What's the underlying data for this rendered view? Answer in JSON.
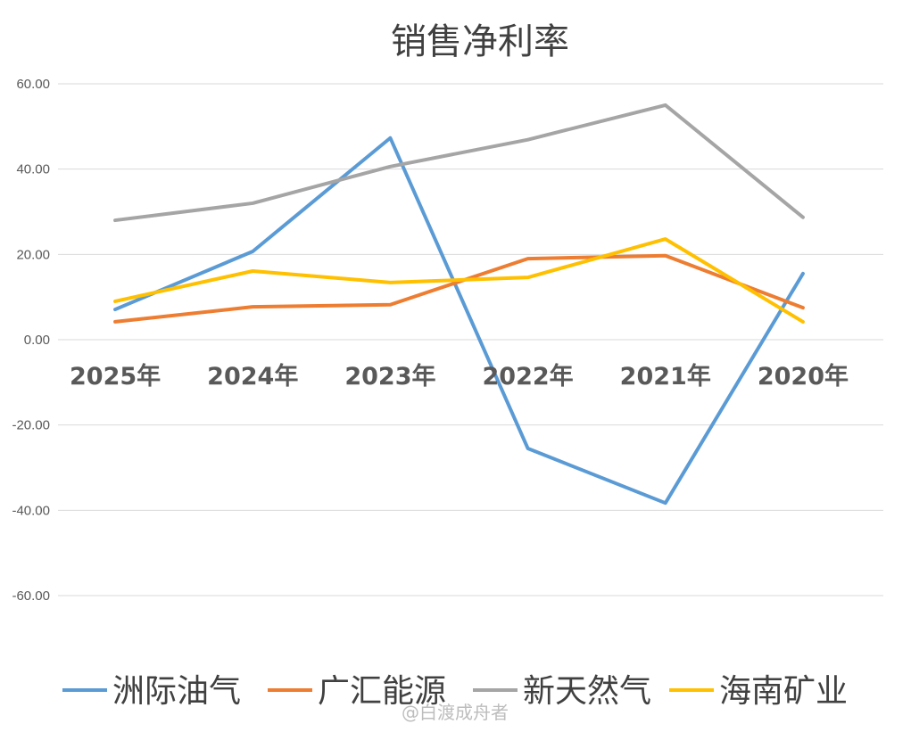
{
  "chart_data": {
    "type": "line",
    "title": "销售净利率",
    "categories": [
      "2025年",
      "2024年",
      "2023年",
      "2022年",
      "2021年",
      "2020年"
    ],
    "ylim": [
      -60,
      60
    ],
    "yticks": [
      "60.00",
      "40.00",
      "20.00",
      "0.00",
      "-20.00",
      "-40.00",
      "-60.00"
    ],
    "ytick_values": [
      60,
      40,
      20,
      0,
      -20,
      -40,
      -60
    ],
    "grid": true,
    "legend_position": "bottom",
    "series": [
      {
        "name": "洲际油气",
        "color": "#5B9BD5",
        "values": [
          7.1,
          20.7,
          47.3,
          -25.5,
          -38.3,
          15.5
        ]
      },
      {
        "name": "广汇能源",
        "color": "#ED7D31",
        "values": [
          4.2,
          7.7,
          8.2,
          19.0,
          19.7,
          7.5
        ]
      },
      {
        "name": "新天然气",
        "color": "#A5A5A5",
        "values": [
          28.0,
          32.0,
          40.6,
          46.9,
          55.0,
          28.7
        ]
      },
      {
        "name": "海南矿业",
        "color": "#FFC000",
        "values": [
          9.0,
          16.1,
          13.4,
          14.6,
          23.6,
          4.2
        ]
      }
    ]
  },
  "watermark": "@白渡成舟者"
}
